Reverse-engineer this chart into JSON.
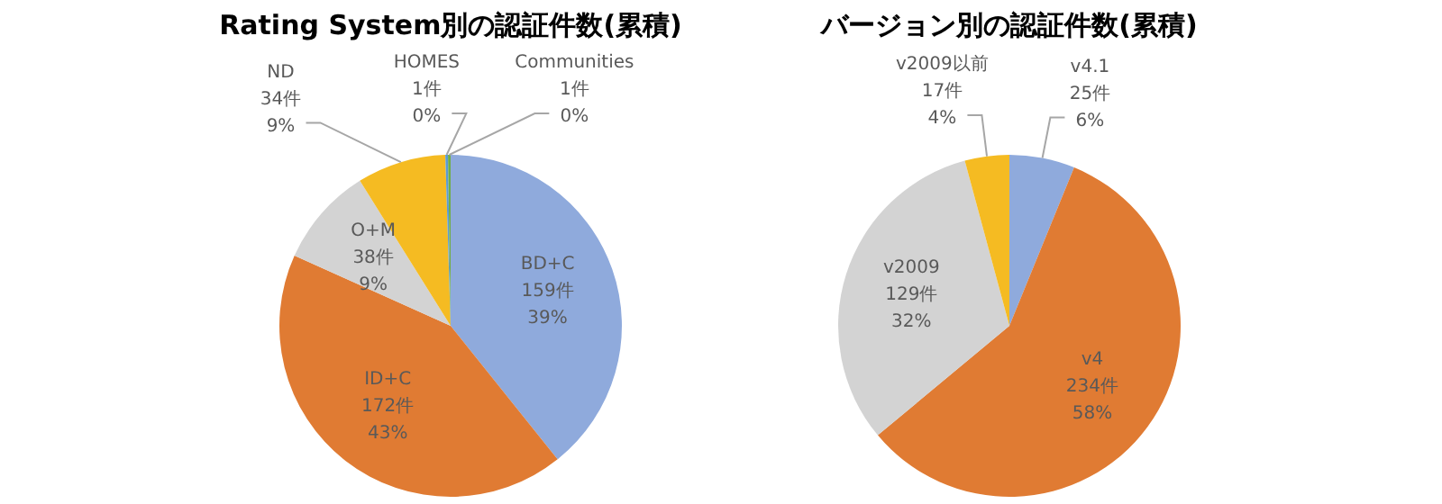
{
  "chart_data": [
    {
      "type": "pie",
      "title": "Rating System別の認証件数(累積)",
      "categories": [
        "BD+C",
        "ID+C",
        "O+M",
        "ND",
        "HOMES",
        "Communities"
      ],
      "values": [
        159,
        172,
        38,
        34,
        1,
        1
      ],
      "colors": [
        "#8faadc",
        "#e07b33",
        "#d3d3d3",
        "#f5bb22",
        "#5b9bd5",
        "#70ad47"
      ],
      "value_labels": [
        "159件\n39%",
        "172件\n43%",
        "38件\n9%",
        "34件\n9%",
        "1件\n0%",
        "1件\n0%"
      ],
      "legend": false
    },
    {
      "type": "pie",
      "title": "バージョン別の認証件数(累積)",
      "categories": [
        "v4.1",
        "v4",
        "v2009",
        "v2009以前"
      ],
      "values": [
        25,
        234,
        129,
        17
      ],
      "colors": [
        "#8faadc",
        "#e07b33",
        "#d3d3d3",
        "#f5bb22"
      ],
      "value_labels": [
        "25件\n6%",
        "234件\n58%",
        "129件\n32%",
        "17件\n4%"
      ],
      "legend": false
    }
  ]
}
